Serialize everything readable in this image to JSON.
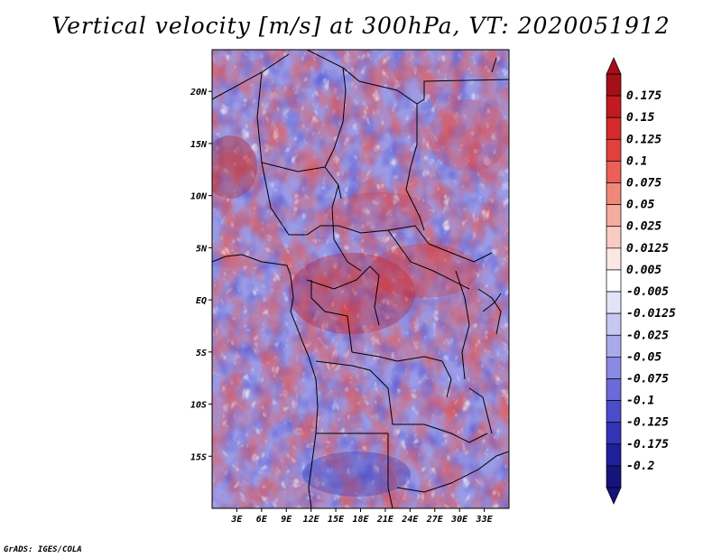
{
  "title": "Vertical velocity [m/s] at 300hPa, VT: 2020051912",
  "credit": "GrADS: IGES/COLA",
  "map": {
    "lon_range": [
      0,
      36
    ],
    "lat_range": [
      -20,
      24
    ],
    "x_ticks": [
      "3E",
      "6E",
      "9E",
      "12E",
      "15E",
      "18E",
      "21E",
      "24E",
      "27E",
      "30E",
      "33E"
    ],
    "x_tick_values": [
      3,
      6,
      9,
      12,
      15,
      18,
      21,
      24,
      27,
      30,
      33
    ],
    "y_ticks": [
      "20N",
      "15N",
      "10N",
      "5N",
      "EQ",
      "5S",
      "10S",
      "15S"
    ],
    "y_tick_values": [
      20,
      15,
      10,
      5,
      0,
      -5,
      -10,
      -15
    ]
  },
  "colorbar": {
    "labels": [
      "0.175",
      "0.15",
      "0.125",
      "0.1",
      "0.075",
      "0.05",
      "0.025",
      "0.0125",
      "0.005",
      "-0.005",
      "-0.0125",
      "-0.025",
      "-0.05",
      "-0.075",
      "-0.1",
      "-0.125",
      "-0.175",
      "-0.2"
    ],
    "colors": [
      "#a50f15",
      "#c11b1f",
      "#d52a2a",
      "#e0413d",
      "#ea6058",
      "#f08878",
      "#f5ab9e",
      "#f9ccc3",
      "#fce8e3",
      "#ffffff",
      "#e3e3f8",
      "#c7c7f2",
      "#a9a9ec",
      "#8a8ae4",
      "#6a6ad9",
      "#4c4ccb",
      "#3333b5",
      "#1f1f99",
      "#14147a"
    ]
  }
}
